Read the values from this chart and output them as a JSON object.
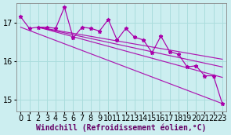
{
  "xlabel": "Windchill (Refroidissement éolien,°C)",
  "background_color": "#cceef0",
  "grid_color": "#aadddd",
  "line_color": "#aa00aa",
  "xlim": [
    -0.5,
    23.5
  ],
  "ylim": [
    14.7,
    17.5
  ],
  "yticks": [
    15,
    16,
    17
  ],
  "xticks": [
    0,
    1,
    2,
    3,
    4,
    5,
    6,
    7,
    8,
    9,
    10,
    11,
    12,
    13,
    14,
    15,
    16,
    17,
    18,
    19,
    20,
    21,
    22,
    23
  ],
  "jagged_x": [
    0,
    1,
    2,
    3,
    4,
    5,
    6,
    7,
    8,
    9,
    10,
    11,
    12,
    13,
    14,
    15,
    16,
    17,
    18,
    19,
    20,
    21,
    22,
    23
  ],
  "jagged_y": [
    17.15,
    16.85,
    16.88,
    16.88,
    16.85,
    17.4,
    16.6,
    16.88,
    16.85,
    16.78,
    17.08,
    16.55,
    16.85,
    16.62,
    16.55,
    16.22,
    16.65,
    16.25,
    16.18,
    15.85,
    15.88,
    15.62,
    15.62,
    14.9
  ],
  "trend_lines": [
    {
      "x": [
        0,
        23
      ],
      "y": [
        16.88,
        14.9
      ]
    },
    {
      "x": [
        2,
        23
      ],
      "y": [
        16.88,
        15.58
      ]
    },
    {
      "x": [
        2,
        23
      ],
      "y": [
        16.88,
        15.85
      ]
    },
    {
      "x": [
        2,
        23
      ],
      "y": [
        16.88,
        16.05
      ]
    }
  ],
  "xlabel_fontsize": 7,
  "tick_fontsize": 7
}
